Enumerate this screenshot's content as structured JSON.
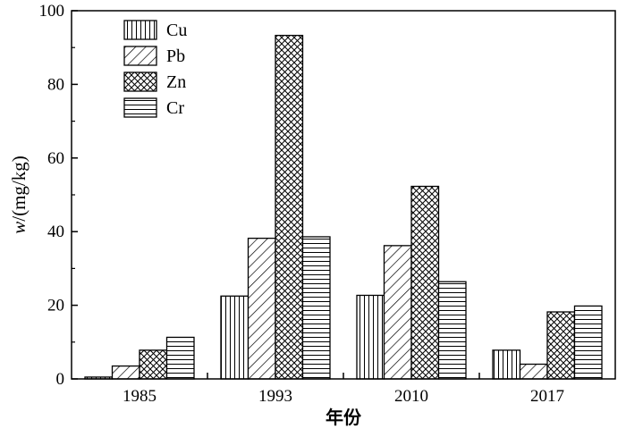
{
  "chart_data": {
    "type": "bar",
    "title": "",
    "xlabel": "年份",
    "ylabel_italic": "w",
    "ylabel_rest": "/(mg/kg)",
    "categories": [
      "1985",
      "1993",
      "2010",
      "2017"
    ],
    "ylim": [
      0,
      100
    ],
    "yticks": [
      "0",
      "20",
      "40",
      "60",
      "80",
      "100"
    ],
    "grid": false,
    "legend_position": "top-left",
    "series": [
      {
        "name": "Cu",
        "values": [
          0.5,
          22.5,
          22.7,
          7.8
        ],
        "pattern": "vertical"
      },
      {
        "name": "Pb",
        "values": [
          3.5,
          38.2,
          36.2,
          4.0
        ],
        "pattern": "diagonal"
      },
      {
        "name": "Zn",
        "values": [
          7.8,
          93.3,
          52.3,
          18.2
        ],
        "pattern": "crosshatch"
      },
      {
        "name": "Cr",
        "values": [
          11.3,
          38.6,
          26.4,
          19.8
        ],
        "pattern": "horizontal"
      }
    ]
  }
}
